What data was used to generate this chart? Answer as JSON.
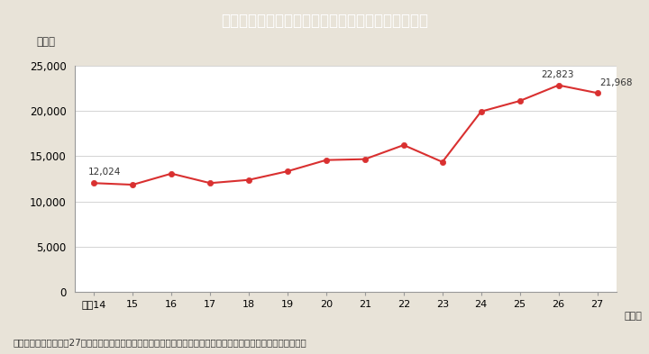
{
  "title": "Ｉ－５－６図　ストーカー事案の相談等件数の推移",
  "title_bg_color": "#3bbec8",
  "title_text_color": "#ffffff",
  "bg_color": "#e8e3d8",
  "plot_bg_color": "#ffffff",
  "line_color": "#d93030",
  "marker_color": "#d93030",
  "ylabel": "（件）",
  "x_labels": [
    "平成14",
    "15",
    "16",
    "17",
    "18",
    "19",
    "20",
    "21",
    "22",
    "23",
    "24",
    "25",
    "26",
    "27"
  ],
  "values": [
    12024,
    11844,
    13072,
    12024,
    12377,
    13329,
    14567,
    14664,
    16218,
    14357,
    19920,
    21090,
    22823,
    21968
  ],
  "ylim": [
    0,
    25000
  ],
  "yticks": [
    0,
    5000,
    10000,
    15000,
    20000,
    25000
  ],
  "footnote": "（備考）警察庁「平成27年におけるストーカー事案及び配偶者からの暴力事案等の対応状況について」より作成。"
}
